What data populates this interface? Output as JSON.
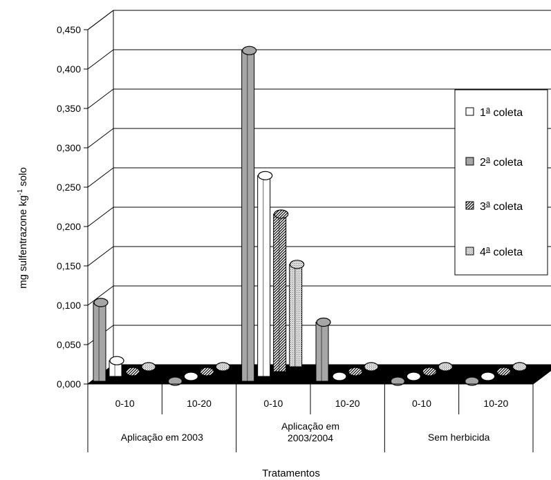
{
  "chart_data": {
    "type": "bar",
    "title": "",
    "xlabel": "Tratamentos",
    "ylabel": "mg sulfentrazone kg",
    "ylabel_sup": "-1",
    "ylabel_suffix": " solo",
    "ylim": [
      0,
      0.45
    ],
    "yticks": [
      "0,000",
      "0,050",
      "0,100",
      "0,150",
      "0,200",
      "0,250",
      "0,300",
      "0,350",
      "0,400",
      "0,450"
    ],
    "grid": true,
    "legend_position": "right",
    "categories": [
      "0-10",
      "10-20",
      "0-10",
      "10-20",
      "0-10",
      "10-20"
    ],
    "groups": [
      {
        "label": "Aplicação em 2003",
        "lines": [
          "Aplicação em 2003"
        ]
      },
      {
        "label": "Aplicação em 2003/2004",
        "lines": [
          "Aplicação em",
          "2003/2004"
        ]
      },
      {
        "label": "Sem herbicida",
        "lines": [
          "Sem herbicida"
        ]
      }
    ],
    "series": [
      {
        "name": "1ª coleta",
        "values": [
          0.02,
          0.0,
          0.255,
          0.0,
          0.0,
          0.0
        ]
      },
      {
        "name": "2ª coleta",
        "values": [
          0.1,
          0.0,
          0.42,
          0.075,
          0.0,
          0.0
        ]
      },
      {
        "name": "3ª coleta",
        "values": [
          0.0,
          0.0,
          0.2,
          0.0,
          0.0,
          0.0
        ]
      },
      {
        "name": "4ª coleta",
        "values": [
          0.0,
          0.0,
          0.13,
          0.0,
          0.0,
          0.0
        ]
      }
    ]
  },
  "legend": {
    "items": [
      {
        "base": "1",
        "sup": "a",
        "rest": " coleta"
      },
      {
        "base": "2",
        "sup": "a",
        "rest": " coleta"
      },
      {
        "base": "3",
        "sup": "a",
        "rest": " coleta"
      },
      {
        "base": "4",
        "sup": "a",
        "rest": " coleta"
      }
    ]
  }
}
